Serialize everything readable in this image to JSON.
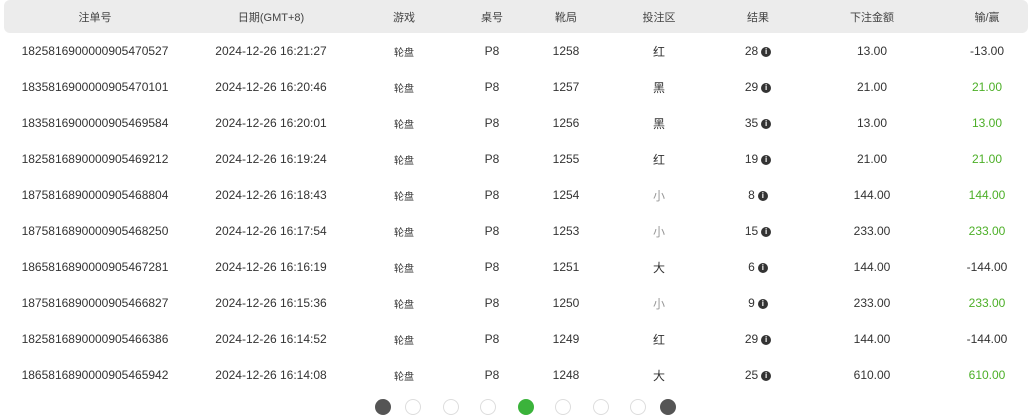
{
  "columns": [
    "注单号",
    "日期(GMT+8)",
    "游戏",
    "桌号",
    "靴局",
    "投注区",
    "结果",
    "下注金额",
    "输/赢"
  ],
  "rows": [
    {
      "id": "1825816900000905470527",
      "date": "2024-12-26 16:21:27",
      "game": "轮盘",
      "table": "P8",
      "round": "1258",
      "zone": "红",
      "result": "28",
      "bet": "13.00",
      "winloss": "-13.00",
      "win": false
    },
    {
      "id": "1835816900000905470101",
      "date": "2024-12-26 16:20:46",
      "game": "轮盘",
      "table": "P8",
      "round": "1257",
      "zone": "黑",
      "result": "29",
      "bet": "21.00",
      "winloss": "21.00",
      "win": true
    },
    {
      "id": "1835816900000905469584",
      "date": "2024-12-26 16:20:01",
      "game": "轮盘",
      "table": "P8",
      "round": "1256",
      "zone": "黑",
      "result": "35",
      "bet": "13.00",
      "winloss": "13.00",
      "win": true
    },
    {
      "id": "1825816890000905469212",
      "date": "2024-12-26 16:19:24",
      "game": "轮盘",
      "table": "P8",
      "round": "1255",
      "zone": "红",
      "result": "19",
      "bet": "21.00",
      "winloss": "21.00",
      "win": true
    },
    {
      "id": "1875816890000905468804",
      "date": "2024-12-26 16:18:43",
      "game": "轮盘",
      "table": "P8",
      "round": "1254",
      "zone": "小",
      "result": "8",
      "bet": "144.00",
      "winloss": "144.00",
      "win": true
    },
    {
      "id": "1875816890000905468250",
      "date": "2024-12-26 16:17:54",
      "game": "轮盘",
      "table": "P8",
      "round": "1253",
      "zone": "小",
      "result": "15",
      "bet": "233.00",
      "winloss": "233.00",
      "win": true
    },
    {
      "id": "1865816890000905467281",
      "date": "2024-12-26 16:16:19",
      "game": "轮盘",
      "table": "P8",
      "round": "1251",
      "zone": "大",
      "result": "6",
      "bet": "144.00",
      "winloss": "-144.00",
      "win": false
    },
    {
      "id": "1875816890000905466827",
      "date": "2024-12-26 16:15:36",
      "game": "轮盘",
      "table": "P8",
      "round": "1250",
      "zone": "小",
      "result": "9",
      "bet": "233.00",
      "winloss": "233.00",
      "win": true
    },
    {
      "id": "1825816890000905466386",
      "date": "2024-12-26 16:14:52",
      "game": "轮盘",
      "table": "P8",
      "round": "1249",
      "zone": "红",
      "result": "29",
      "bet": "144.00",
      "winloss": "-144.00",
      "win": false
    },
    {
      "id": "1865816890000905465942",
      "date": "2024-12-26 16:14:08",
      "game": "轮盘",
      "table": "P8",
      "round": "1248",
      "zone": "大",
      "result": "25",
      "bet": "610.00",
      "winloss": "610.00",
      "win": true
    }
  ],
  "info_icon": "i",
  "colors": {
    "win": "#4caf27",
    "header_bg": "#ececec",
    "active_page": "#3bb33b"
  },
  "pagination": {
    "count": 9,
    "active_index": 4
  }
}
